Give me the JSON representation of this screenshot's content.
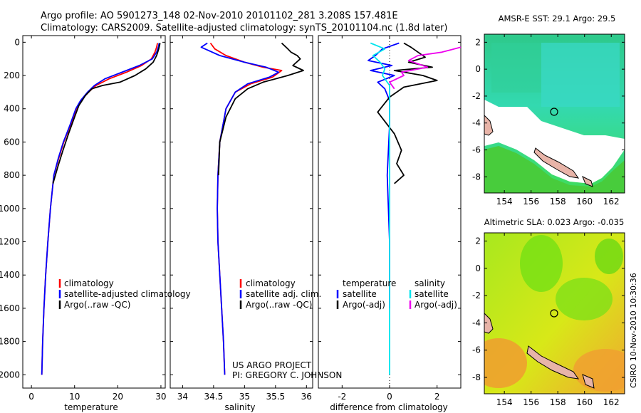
{
  "header": {
    "line1": "Argo profile: AO 5901273_148 02-Nov-2010 20101102_281 3.208S 157.481E",
    "line2": "Climatology: CARS2009. Satellite-adjusted climatology: synTS_20101104.nc (1.8d later)"
  },
  "colors": {
    "climatology": "#ff0000",
    "satellite": "#0000ff",
    "argo": "#000000",
    "satellite_salinity": "#00e5ee",
    "argo_salinity": "#ee00ee",
    "land": "#e8b4a8"
  },
  "credits": {
    "line1": "US ARGO PROJECT",
    "line2": "PI: GREGORY C. JOHNSON",
    "side": "CSIRO 10-Nov-2010 10:30:36"
  },
  "chart_data": [
    {
      "id": "temperature",
      "type": "line",
      "xlabel": "temperature",
      "ylabel": "",
      "xlim": [
        -2,
        31
      ],
      "ylim": [
        2080,
        -40
      ],
      "yreverse": true,
      "xticks": [
        0,
        10,
        20,
        30
      ],
      "yticks": [
        0,
        200,
        400,
        600,
        800,
        1000,
        1200,
        1400,
        1600,
        1800,
        2000
      ],
      "legend": [
        "climatology",
        "satellite-adjusted climatology",
        "Argo(..raw -QC)"
      ],
      "series": [
        {
          "name": "climatology",
          "color": "#ff0000",
          "x": [
            29.2,
            29.0,
            28.6,
            27.8,
            25.5,
            22.0,
            18.0,
            15.0,
            13.2,
            11.5,
            10.4,
            9.0,
            7.5,
            6.3,
            5.2,
            4.4,
            3.8,
            3.3,
            2.9,
            2.6,
            2.4
          ],
          "y": [
            5,
            30,
            60,
            100,
            140,
            180,
            220,
            260,
            300,
            350,
            400,
            500,
            600,
            700,
            800,
            1000,
            1200,
            1400,
            1600,
            1800,
            2000
          ]
        },
        {
          "name": "satellite-adjusted climatology",
          "color": "#0000ff",
          "x": [
            29.6,
            29.4,
            29.0,
            28.0,
            25.0,
            21.0,
            17.0,
            14.6,
            13.0,
            11.4,
            10.3,
            8.9,
            7.4,
            6.2,
            5.2,
            4.4,
            3.8,
            3.3,
            2.9,
            2.6,
            2.4
          ],
          "y": [
            5,
            30,
            60,
            100,
            140,
            180,
            220,
            260,
            300,
            350,
            400,
            500,
            600,
            700,
            800,
            1000,
            1200,
            1400,
            1600,
            1800,
            2000
          ]
        },
        {
          "name": "Argo(..raw -QC)",
          "color": "#000000",
          "x": [
            29.8,
            29.5,
            29.0,
            28.2,
            26.5,
            24.0,
            20.5,
            16.5,
            14.0,
            12.5,
            11.0,
            10.0,
            8.6,
            7.3,
            6.1,
            5.0
          ],
          "y": [
            5,
            40,
            80,
            120,
            160,
            200,
            240,
            260,
            280,
            320,
            380,
            450,
            550,
            650,
            750,
            850
          ]
        }
      ]
    },
    {
      "id": "salinity",
      "type": "line",
      "xlabel": "salinity",
      "ylabel": "",
      "xlim": [
        33.8,
        36.1
      ],
      "ylim": [
        2080,
        -40
      ],
      "yreverse": true,
      "xticks": [
        34,
        34.5,
        35,
        35.5,
        36
      ],
      "yticks": [
        0,
        200,
        400,
        600,
        800,
        1000,
        1200,
        1400,
        1600,
        1800,
        2000
      ],
      "legend": [
        "climatology",
        "satellite adj. clim.",
        "Argo(..raw -QC)"
      ],
      "series": [
        {
          "name": "climatology",
          "color": "#ff0000",
          "x": [
            34.45,
            34.52,
            34.7,
            35.0,
            35.3,
            35.6,
            35.45,
            35.1,
            34.85,
            34.7,
            34.6,
            34.57,
            34.56,
            34.57,
            34.6,
            34.63,
            34.66,
            34.68
          ],
          "y": [
            5,
            40,
            80,
            120,
            150,
            170,
            210,
            250,
            300,
            400,
            600,
            800,
            1000,
            1200,
            1400,
            1600,
            1800,
            2000
          ]
        },
        {
          "name": "satellite adj. clim.",
          "color": "#0000ff",
          "x": [
            34.4,
            34.3,
            34.6,
            35.0,
            35.35,
            35.55,
            35.4,
            35.05,
            34.85,
            34.7,
            34.6,
            34.57,
            34.56,
            34.57,
            34.6,
            34.63,
            34.66,
            34.68
          ],
          "y": [
            5,
            30,
            80,
            120,
            150,
            180,
            210,
            250,
            300,
            400,
            600,
            800,
            1000,
            1200,
            1400,
            1600,
            1800,
            2000
          ]
        },
        {
          "name": "Argo(..raw -QC)",
          "color": "#000000",
          "x": [
            35.6,
            35.7,
            35.75,
            35.85,
            35.9,
            35.78,
            35.95,
            35.7,
            35.3,
            35.05,
            34.85,
            34.7,
            34.6,
            34.58
          ],
          "y": [
            5,
            40,
            60,
            80,
            100,
            140,
            170,
            200,
            240,
            280,
            340,
            450,
            600,
            800
          ]
        }
      ]
    },
    {
      "id": "difference",
      "type": "line",
      "xlabel": "difference from climatology",
      "ylabel": "",
      "xlim": [
        -3,
        3
      ],
      "ylim": [
        2080,
        -40
      ],
      "yreverse": true,
      "xticks": [
        -2,
        0,
        2
      ],
      "yticks": [
        0,
        200,
        400,
        600,
        800,
        1000,
        1200,
        1400,
        1600,
        1800,
        2000
      ],
      "legend_headers": [
        "temperature",
        "salinity"
      ],
      "legend": [
        "satellite",
        "Argo(-adj)",
        "satellite",
        "Argo(-adj)"
      ],
      "series": [
        {
          "name": "temperature satellite",
          "color": "#0000ff",
          "x": [
            0.4,
            -0.3,
            -0.6,
            -0.9,
            0.1,
            -0.8,
            0.2,
            -0.5,
            -0.2,
            0.0,
            0.0,
            -0.1,
            0.0,
            0.0
          ],
          "y": [
            5,
            40,
            80,
            110,
            140,
            170,
            200,
            240,
            280,
            350,
            500,
            800,
            1200,
            1600
          ]
        },
        {
          "name": "temperature Argo(-adj)",
          "color": "#000000",
          "x": [
            0.6,
            0.9,
            1.2,
            1.5,
            0.8,
            1.8,
            0.2,
            1.4,
            2.0,
            0.6,
            0.0,
            -0.5,
            0.2,
            0.5,
            0.3,
            0.6,
            0.2
          ],
          "y": [
            5,
            30,
            60,
            90,
            120,
            150,
            170,
            200,
            230,
            270,
            330,
            420,
            550,
            650,
            730,
            800,
            850
          ]
        },
        {
          "name": "salinity satellite",
          "color": "#00e5ee",
          "x": [
            -0.8,
            -0.2,
            -0.7,
            -0.4,
            -0.2,
            -0.3,
            0.0,
            0.0,
            0.0,
            0.0,
            0.0
          ],
          "y": [
            5,
            40,
            80,
            120,
            160,
            200,
            260,
            400,
            800,
            1400,
            2000
          ]
        },
        {
          "name": "salinity Argo(-adj)",
          "color": "#ee00ee",
          "x": [
            3.0,
            2.2,
            1.2,
            0.8,
            1.6,
            0.5,
            0.6,
            0.0,
            0.2
          ],
          "y": [
            30,
            60,
            80,
            110,
            150,
            180,
            200,
            240,
            280
          ]
        }
      ]
    },
    {
      "id": "sst_map",
      "type": "heatmap",
      "title": "AMSR-E SST: 29.1 Argo: 29.5",
      "xlim": [
        152.5,
        163
      ],
      "ylim": [
        -9.2,
        2.6
      ],
      "xticks": [
        154,
        156,
        158,
        160,
        162
      ],
      "yticks": [
        2,
        0,
        -2,
        -4,
        -6,
        -8
      ],
      "float_position": {
        "lon": 157.481,
        "lat": -3.208
      }
    },
    {
      "id": "sla_map",
      "type": "heatmap",
      "title": "Altimetric SLA: 0.023 Argo: -0.035",
      "xlim": [
        152.5,
        163
      ],
      "ylim": [
        -9.2,
        2.6
      ],
      "xticks": [
        154,
        156,
        158,
        160,
        162
      ],
      "yticks": [
        2,
        0,
        -2,
        -4,
        -6,
        -8
      ],
      "float_position": {
        "lon": 157.481,
        "lat": -3.208
      }
    }
  ]
}
